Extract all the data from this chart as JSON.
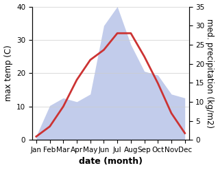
{
  "months": [
    "Jan",
    "Feb",
    "Mar",
    "Apr",
    "May",
    "Jun",
    "Jul",
    "Aug",
    "Sep",
    "Oct",
    "Nov",
    "Dec"
  ],
  "max_temp": [
    1,
    4,
    10,
    18,
    24,
    27,
    32,
    32,
    25,
    17,
    8,
    2
  ],
  "precipitation": [
    1,
    9,
    11,
    10,
    12,
    30,
    35,
    25,
    18,
    17,
    12,
    11
  ],
  "temp_color": "#cc3333",
  "precip_fill_color": "#b8c4e8",
  "temp_ylim": [
    0,
    40
  ],
  "precip_ylim": [
    0,
    35
  ],
  "temp_yticks": [
    0,
    10,
    20,
    30,
    40
  ],
  "precip_yticks": [
    0,
    5,
    10,
    15,
    20,
    25,
    30,
    35
  ],
  "xlabel": "date (month)",
  "ylabel_left": "max temp (C)",
  "ylabel_right": "med. precipitation (kg/m2)",
  "xlabel_fontsize": 9,
  "ylabel_fontsize": 8.5,
  "tick_fontsize": 7.5
}
